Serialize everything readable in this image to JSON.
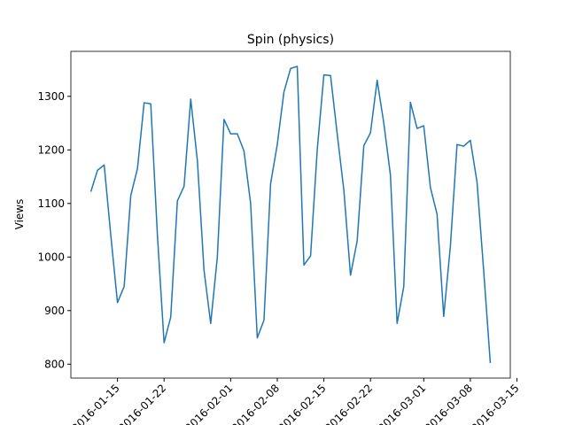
{
  "chart_data": {
    "type": "line",
    "title": "Spin (physics)",
    "y_label": "Views",
    "x": [
      "2016-01-11",
      "2016-01-12",
      "2016-01-13",
      "2016-01-14",
      "2016-01-15",
      "2016-01-16",
      "2016-01-17",
      "2016-01-18",
      "2016-01-19",
      "2016-01-20",
      "2016-01-21",
      "2016-01-22",
      "2016-01-23",
      "2016-01-24",
      "2016-01-25",
      "2016-01-26",
      "2016-01-27",
      "2016-01-28",
      "2016-01-29",
      "2016-01-30",
      "2016-01-31",
      "2016-02-01",
      "2016-02-02",
      "2016-02-03",
      "2016-02-04",
      "2016-02-05",
      "2016-02-06",
      "2016-02-07",
      "2016-02-08",
      "2016-02-09",
      "2016-02-10",
      "2016-02-11",
      "2016-02-12",
      "2016-02-13",
      "2016-02-14",
      "2016-02-15",
      "2016-02-16",
      "2016-02-17",
      "2016-02-18",
      "2016-02-19",
      "2016-02-20",
      "2016-02-21",
      "2016-02-22",
      "2016-02-23",
      "2016-02-24",
      "2016-02-25",
      "2016-02-26",
      "2016-02-27",
      "2016-02-28",
      "2016-02-29",
      "2016-03-01",
      "2016-03-02",
      "2016-03-03",
      "2016-03-04",
      "2016-03-05",
      "2016-03-06",
      "2016-03-07",
      "2016-03-08",
      "2016-03-09",
      "2016-03-10",
      "2016-03-11"
    ],
    "series": [
      {
        "name": "Views",
        "color": "#1f77b4",
        "values": [
          1122,
          1162,
          1172,
          1040,
          915,
          945,
          1115,
          1165,
          1288,
          1286,
          1040,
          840,
          888,
          1105,
          1132,
          1295,
          1180,
          975,
          876,
          1000,
          1257,
          1230,
          1230,
          1198,
          1100,
          849,
          882,
          1137,
          1210,
          1308,
          1352,
          1356,
          985,
          1002,
          1200,
          1340,
          1339,
          1230,
          1125,
          966,
          1030,
          1208,
          1232,
          1330,
          1250,
          1153,
          876,
          945,
          1289,
          1240,
          1245,
          1130,
          1080,
          889,
          1020,
          1210,
          1207,
          1218,
          1140,
          975,
          802
        ]
      }
    ],
    "xlim": [
      "2016-01-08",
      "2016-03-14"
    ],
    "xticks": [
      "2016-01-15",
      "2016-01-22",
      "2016-02-01",
      "2016-02-08",
      "2016-02-15",
      "2016-02-22",
      "2016-03-01",
      "2016-03-08",
      "2016-03-15"
    ],
    "ylim": [
      774,
      1384
    ],
    "yticks": [
      800,
      900,
      1000,
      1100,
      1200,
      1300
    ]
  }
}
